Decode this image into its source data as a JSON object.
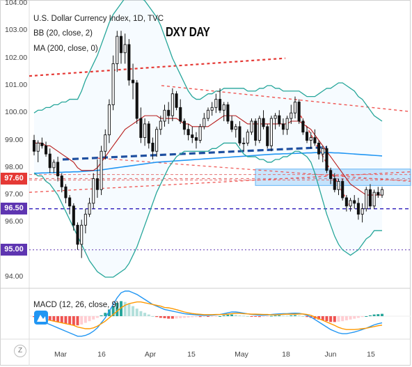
{
  "chart_data": {
    "type": "candlestick",
    "title": "U.S. Dollar Currency Index, 1D, TVC",
    "legend": [
      "BB (20, close, 2)",
      "MA (200, close, 0)"
    ],
    "annotation": "DXY DAY",
    "ylim": [
      94,
      104
    ],
    "y_ticks": [
      "104.00",
      "103.00",
      "102.00",
      "101.00",
      "100.00",
      "99.00",
      "98.00",
      "97.00",
      "96.00",
      "95.00",
      "94.00"
    ],
    "x_ticks": [
      "Mar",
      "16",
      "Apr",
      "15",
      "May",
      "18",
      "Jun",
      "15"
    ],
    "price_tags": [
      {
        "value": "97.60",
        "color": "#e53935"
      },
      {
        "value": "96.50",
        "color": "#5e35b1"
      },
      {
        "value": "95.00",
        "color": "#5e35b1"
      }
    ],
    "ohlc": [
      [
        99.0,
        99.2,
        98.45,
        98.6
      ],
      [
        98.6,
        99.0,
        98.2,
        98.9
      ],
      [
        98.9,
        99.1,
        98.7,
        98.8
      ],
      [
        98.8,
        98.95,
        98.4,
        98.5
      ],
      [
        98.5,
        98.7,
        97.8,
        98.0
      ],
      [
        98.0,
        98.3,
        97.8,
        98.2
      ],
      [
        98.2,
        98.4,
        97.5,
        97.7
      ],
      [
        97.7,
        97.8,
        97.1,
        97.3
      ],
      [
        97.3,
        97.4,
        96.7,
        96.9
      ],
      [
        96.9,
        97.0,
        96.3,
        96.6
      ],
      [
        96.6,
        96.7,
        95.7,
        95.9
      ],
      [
        95.9,
        96.0,
        95.0,
        95.2
      ],
      [
        95.2,
        96.1,
        94.7,
        95.9
      ],
      [
        95.9,
        96.5,
        95.6,
        96.3
      ],
      [
        96.3,
        96.9,
        96.2,
        96.7
      ],
      [
        96.7,
        97.8,
        96.5,
        97.6
      ],
      [
        97.6,
        98.3,
        96.9,
        97.2
      ],
      [
        97.2,
        98.8,
        97.0,
        98.6
      ],
      [
        98.6,
        99.4,
        98.3,
        99.2
      ],
      [
        99.2,
        100.5,
        98.9,
        100.3
      ],
      [
        100.3,
        102.1,
        100.1,
        101.8
      ],
      [
        101.8,
        103.0,
        101.5,
        102.8
      ],
      [
        102.8,
        103.0,
        101.8,
        102.2
      ],
      [
        102.2,
        102.9,
        101.8,
        102.5
      ],
      [
        102.5,
        102.7,
        101.0,
        101.2
      ],
      [
        101.2,
        101.8,
        100.5,
        101.1
      ],
      [
        101.1,
        101.2,
        99.6,
        99.8
      ],
      [
        99.8,
        100.2,
        98.9,
        99.1
      ],
      [
        99.1,
        99.8,
        98.8,
        99.6
      ],
      [
        99.6,
        99.7,
        98.7,
        98.9
      ],
      [
        98.9,
        99.1,
        98.3,
        98.6
      ],
      [
        98.6,
        99.5,
        98.4,
        99.4
      ],
      [
        99.4,
        99.9,
        99.2,
        99.7
      ],
      [
        99.7,
        100.3,
        99.5,
        100.1
      ],
      [
        100.1,
        100.4,
        99.6,
        99.9
      ],
      [
        99.9,
        100.9,
        99.7,
        100.7
      ],
      [
        100.7,
        100.8,
        100.1,
        100.2
      ],
      [
        100.2,
        100.5,
        99.6,
        99.7
      ],
      [
        99.7,
        99.8,
        99.2,
        99.4
      ],
      [
        99.4,
        99.6,
        99.0,
        99.2
      ],
      [
        99.2,
        99.5,
        98.9,
        99.1
      ],
      [
        99.1,
        99.3,
        98.7,
        99.0
      ],
      [
        99.0,
        99.6,
        98.9,
        99.5
      ],
      [
        99.5,
        100.0,
        99.4,
        99.8
      ],
      [
        99.8,
        100.2,
        99.7,
        100.1
      ],
      [
        100.1,
        100.4,
        99.9,
        100.2
      ],
      [
        100.2,
        100.7,
        100.0,
        100.5
      ],
      [
        100.5,
        100.9,
        100.0,
        100.1
      ],
      [
        100.1,
        100.4,
        99.7,
        100.3
      ],
      [
        100.3,
        100.4,
        99.6,
        99.7
      ],
      [
        99.7,
        99.9,
        99.3,
        99.4
      ],
      [
        99.4,
        99.6,
        99.1,
        99.5
      ],
      [
        99.5,
        99.7,
        98.8,
        98.9
      ],
      [
        98.9,
        99.1,
        98.6,
        98.9
      ],
      [
        98.9,
        99.4,
        98.8,
        99.3
      ],
      [
        99.3,
        99.8,
        99.2,
        99.7
      ],
      [
        99.7,
        99.8,
        98.8,
        99.0
      ],
      [
        99.0,
        99.9,
        98.9,
        99.8
      ],
      [
        99.8,
        100.1,
        99.4,
        99.5
      ],
      [
        99.5,
        99.6,
        98.7,
        98.8
      ],
      [
        98.8,
        99.9,
        98.6,
        99.8
      ],
      [
        99.8,
        100.0,
        99.4,
        99.9
      ],
      [
        99.9,
        100.1,
        99.5,
        99.6
      ],
      [
        99.6,
        99.8,
        99.2,
        99.4
      ],
      [
        99.4,
        99.9,
        99.2,
        99.8
      ],
      [
        99.8,
        100.3,
        99.6,
        100.0
      ],
      [
        100.0,
        100.6,
        99.8,
        100.4
      ],
      [
        100.4,
        100.5,
        99.6,
        99.7
      ],
      [
        99.7,
        99.8,
        99.2,
        99.3
      ],
      [
        99.3,
        99.5,
        98.9,
        99.0
      ],
      [
        99.0,
        99.3,
        98.7,
        99.1
      ],
      [
        99.1,
        99.4,
        98.8,
        98.9
      ],
      [
        98.9,
        99.0,
        98.3,
        98.5
      ],
      [
        98.5,
        98.8,
        98.2,
        98.7
      ],
      [
        98.7,
        98.8,
        97.8,
        97.9
      ],
      [
        97.9,
        98.0,
        97.4,
        97.6
      ],
      [
        97.6,
        97.8,
        97.1,
        97.2
      ],
      [
        97.2,
        97.6,
        97.0,
        97.5
      ],
      [
        97.5,
        97.6,
        96.8,
        96.9
      ],
      [
        96.9,
        97.0,
        96.4,
        96.6
      ],
      [
        96.6,
        96.9,
        96.4,
        96.8
      ],
      [
        96.8,
        97.0,
        96.5,
        96.7
      ],
      [
        96.7,
        96.9,
        96.1,
        96.3
      ],
      [
        96.3,
        96.7,
        96.0,
        96.5
      ],
      [
        96.5,
        97.3,
        96.4,
        97.2
      ],
      [
        97.2,
        97.4,
        96.5,
        96.6
      ],
      [
        96.6,
        97.2,
        96.5,
        97.1
      ],
      [
        97.1,
        97.3,
        96.9,
        97.0
      ],
      [
        97.0,
        97.3,
        96.9,
        97.2
      ]
    ],
    "bb_upper": [
      100.0,
      100.1,
      100.1,
      100.2,
      100.2,
      100.3,
      100.3,
      100.4,
      100.4,
      100.5,
      100.5,
      100.5,
      100.8,
      101.2,
      101.5,
      101.8,
      102.1,
      102.5,
      102.9,
      103.3,
      103.6,
      103.8,
      104.0,
      104.2,
      104.3,
      104.3,
      104.3,
      104.2,
      104.1,
      103.9,
      103.7,
      103.5,
      103.2,
      102.8,
      102.4,
      102.0,
      101.7,
      101.4,
      101.1,
      100.8,
      100.6,
      100.5,
      100.5,
      100.6,
      100.7,
      100.7,
      100.8,
      100.8,
      100.9,
      100.9,
      100.9,
      100.9,
      100.9,
      100.9,
      100.8,
      100.8,
      100.8,
      100.9,
      100.9,
      101.0,
      101.0,
      100.9,
      100.9,
      100.8,
      100.8,
      100.8,
      100.8,
      100.8,
      100.7,
      100.6,
      100.6,
      100.6,
      100.7,
      100.8,
      100.9,
      100.9,
      101.0,
      101.1,
      101.1,
      101.0,
      100.9,
      100.8,
      100.6,
      100.5,
      100.3,
      100.1,
      99.9,
      99.8,
      99.7
    ],
    "bb_basis": [
      98.9,
      98.9,
      98.9,
      98.8,
      98.8,
      98.7,
      98.6,
      98.5,
      98.4,
      98.3,
      98.2,
      98.0,
      97.9,
      97.9,
      97.9,
      97.9,
      98.0,
      98.2,
      98.4,
      98.6,
      98.8,
      99.0,
      99.2,
      99.4,
      99.5,
      99.6,
      99.7,
      99.8,
      99.9,
      99.9,
      99.9,
      99.9,
      99.8,
      99.8,
      99.8,
      99.8,
      99.8,
      99.7,
      99.6,
      99.6,
      99.5,
      99.5,
      99.5,
      99.5,
      99.5,
      99.6,
      99.7,
      99.8,
      99.9,
      99.9,
      99.9,
      99.9,
      99.8,
      99.7,
      99.6,
      99.6,
      99.6,
      99.6,
      99.6,
      99.6,
      99.6,
      99.6,
      99.6,
      99.6,
      99.6,
      99.7,
      99.7,
      99.7,
      99.6,
      99.5,
      99.4,
      99.2,
      99.0,
      98.8,
      98.6,
      98.4,
      98.2,
      98.0,
      97.8,
      97.6,
      97.4,
      97.3,
      97.2,
      97.1,
      97.0,
      97.0,
      97.0,
      97.0,
      97.0
    ],
    "bb_lower": [
      97.8,
      97.7,
      97.7,
      97.5,
      97.4,
      97.2,
      97.0,
      96.7,
      96.4,
      96.1,
      95.8,
      95.5,
      95.2,
      94.9,
      94.6,
      94.4,
      94.2,
      94.1,
      94.0,
      94.0,
      94.0,
      94.1,
      94.2,
      94.3,
      94.5,
      94.8,
      95.1,
      95.5,
      95.9,
      96.3,
      96.7,
      97.1,
      97.4,
      97.7,
      98.0,
      98.2,
      98.4,
      98.5,
      98.6,
      98.6,
      98.6,
      98.6,
      98.6,
      98.6,
      98.6,
      98.7,
      98.7,
      98.8,
      98.9,
      98.9,
      98.9,
      98.9,
      98.7,
      98.5,
      98.4,
      98.4,
      98.4,
      98.3,
      98.3,
      98.2,
      98.2,
      98.3,
      98.3,
      98.4,
      98.4,
      98.5,
      98.6,
      98.6,
      98.5,
      98.4,
      98.2,
      97.8,
      97.3,
      96.8,
      96.3,
      95.9,
      95.5,
      95.2,
      95.0,
      94.9,
      94.8,
      94.9,
      95.0,
      95.2,
      95.4,
      95.5,
      95.7,
      95.7,
      95.7
    ],
    "ma200": [
      97.8,
      97.8,
      97.81,
      97.81,
      97.82,
      97.82,
      97.83,
      97.83,
      97.84,
      97.84,
      97.85,
      97.85,
      97.86,
      97.87,
      97.88,
      97.89,
      97.9,
      97.92,
      97.94,
      97.96,
      97.98,
      98.0,
      98.02,
      98.04,
      98.06,
      98.08,
      98.1,
      98.12,
      98.14,
      98.16,
      98.18,
      98.2,
      98.21,
      98.22,
      98.23,
      98.24,
      98.25,
      98.26,
      98.27,
      98.28,
      98.29,
      98.3,
      98.31,
      98.32,
      98.33,
      98.34,
      98.35,
      98.36,
      98.37,
      98.38,
      98.39,
      98.4,
      98.41,
      98.42,
      98.43,
      98.44,
      98.45,
      98.46,
      98.47,
      98.48,
      98.49,
      98.5,
      98.5,
      98.51,
      98.51,
      98.52,
      98.52,
      98.53,
      98.53,
      98.54,
      98.54,
      98.55,
      98.55,
      98.55,
      98.55,
      98.55,
      98.54,
      98.54,
      98.53,
      98.52,
      98.51,
      98.5,
      98.49,
      98.48,
      98.47,
      98.46,
      98.45,
      98.44,
      98.43
    ],
    "macd": {
      "label": "MACD (12, 26, close, 9)",
      "hist": [
        -0.05,
        -0.1,
        -0.15,
        -0.2,
        -0.25,
        -0.3,
        -0.35,
        -0.4,
        -0.45,
        -0.5,
        -0.55,
        -0.55,
        -0.5,
        -0.4,
        -0.3,
        -0.2,
        -0.1,
        0.05,
        0.2,
        0.4,
        0.6,
        0.8,
        0.9,
        0.85,
        0.75,
        0.6,
        0.45,
        0.3,
        0.2,
        0.1,
        0.0,
        -0.05,
        -0.1,
        -0.12,
        -0.15,
        -0.15,
        -0.14,
        -0.12,
        -0.1,
        -0.08,
        -0.06,
        -0.05,
        -0.05,
        -0.04,
        -0.04,
        -0.03,
        -0.02,
        0.0,
        0.05,
        0.08,
        0.1,
        0.08,
        0.05,
        0.03,
        0.0,
        -0.02,
        -0.04,
        -0.05,
        -0.04,
        -0.03,
        0.02,
        0.04,
        0.05,
        0.04,
        0.03,
        0.05,
        0.06,
        0.04,
        0.0,
        -0.05,
        -0.1,
        -0.15,
        -0.2,
        -0.25,
        -0.3,
        -0.35,
        -0.35,
        -0.33,
        -0.3,
        -0.25,
        -0.2,
        -0.15,
        -0.1,
        -0.05,
        0.0,
        0.05,
        0.1,
        0.12,
        0.14
      ],
      "macd_line": [
        -0.1,
        -0.2,
        -0.3,
        -0.4,
        -0.5,
        -0.6,
        -0.7,
        -0.8,
        -0.9,
        -1.0,
        -1.1,
        -1.2,
        -1.2,
        -1.15,
        -1.05,
        -0.9,
        -0.7,
        -0.4,
        -0.1,
        0.3,
        0.7,
        1.1,
        1.4,
        1.5,
        1.5,
        1.4,
        1.3,
        1.15,
        1.0,
        0.85,
        0.7,
        0.6,
        0.5,
        0.4,
        0.35,
        0.3,
        0.25,
        0.2,
        0.15,
        0.12,
        0.1,
        0.08,
        0.06,
        0.05,
        0.05,
        0.06,
        0.08,
        0.1,
        0.15,
        0.2,
        0.25,
        0.25,
        0.22,
        0.18,
        0.14,
        0.1,
        0.08,
        0.06,
        0.06,
        0.07,
        0.1,
        0.12,
        0.14,
        0.15,
        0.15,
        0.17,
        0.18,
        0.17,
        0.13,
        0.05,
        -0.05,
        -0.2,
        -0.35,
        -0.5,
        -0.65,
        -0.8,
        -0.9,
        -1.0,
        -1.05,
        -1.05,
        -1.0,
        -0.95,
        -0.88,
        -0.8,
        -0.72,
        -0.62,
        -0.52,
        -0.45,
        -0.4
      ],
      "signal_line": [
        -0.05,
        -0.1,
        -0.15,
        -0.2,
        -0.25,
        -0.3,
        -0.35,
        -0.4,
        -0.45,
        -0.5,
        -0.55,
        -0.65,
        -0.7,
        -0.75,
        -0.75,
        -0.7,
        -0.6,
        -0.45,
        -0.3,
        -0.1,
        0.1,
        0.3,
        0.5,
        0.65,
        0.75,
        0.8,
        0.85,
        0.85,
        0.8,
        0.75,
        0.7,
        0.65,
        0.6,
        0.52,
        0.5,
        0.45,
        0.39,
        0.32,
        0.25,
        0.2,
        0.16,
        0.13,
        0.11,
        0.09,
        0.09,
        0.09,
        0.1,
        0.1,
        0.1,
        0.12,
        0.15,
        0.17,
        0.17,
        0.15,
        0.14,
        0.12,
        0.12,
        0.11,
        0.1,
        0.1,
        0.08,
        0.08,
        0.09,
        0.11,
        0.12,
        0.12,
        0.12,
        0.13,
        0.13,
        0.1,
        0.05,
        -0.05,
        -0.15,
        -0.25,
        -0.35,
        -0.45,
        -0.55,
        -0.67,
        -0.75,
        -0.8,
        -0.8,
        -0.8,
        -0.78,
        -0.75,
        -0.72,
        -0.67,
        -0.62,
        -0.57,
        -0.54
      ]
    }
  }
}
